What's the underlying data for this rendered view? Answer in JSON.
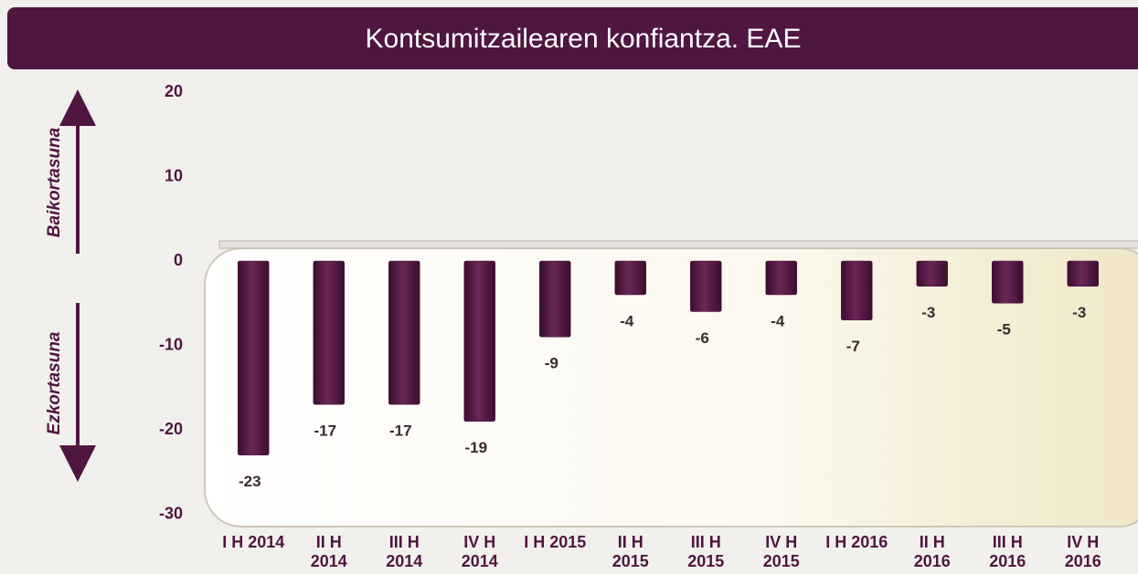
{
  "chart_data": {
    "type": "bar",
    "title": "Kontsumitzailearen konfiantza. EAE",
    "annotations": [
      "Baikortasuna",
      "Ezkortasuna"
    ],
    "categories": [
      "I H 2014",
      "II H 2014",
      "III H 2014",
      "IV H 2014",
      "I H 2015",
      "II H 2015",
      "III H 2015",
      "IV H 2015",
      "I H 2016",
      "II H 2016",
      "III H 2016",
      "IV H 2016"
    ],
    "values": [
      -23,
      -17,
      -17,
      -19,
      -9,
      -4,
      -6,
      -4,
      -7,
      -3,
      -5,
      -3
    ],
    "color": "#5b1a48",
    "ylim": [
      -30,
      20
    ],
    "yticks": [
      -30,
      -20,
      -10,
      0,
      10,
      20
    ],
    "grid": false
  }
}
